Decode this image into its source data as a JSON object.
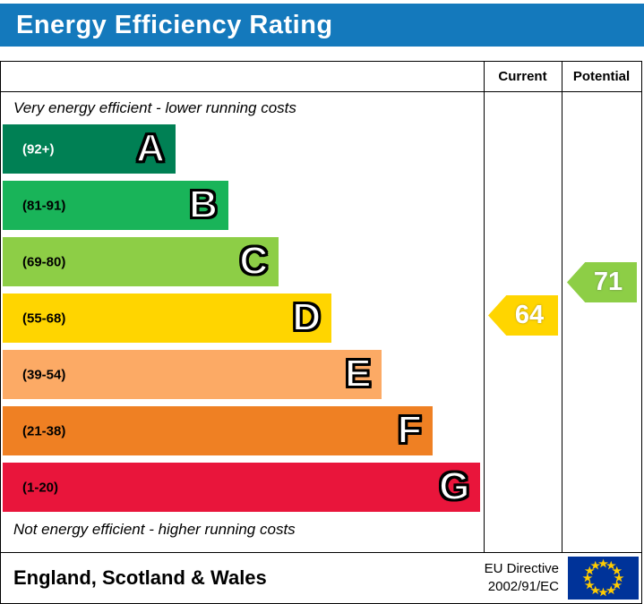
{
  "header": {
    "background_color": "#1479bc",
    "title_color": "#ffffff"
  },
  "chart_data": {
    "type": "bar",
    "title": "Energy Efficiency Rating",
    "columns": [
      "Current",
      "Potential"
    ],
    "top_caption": "Very energy efficient - lower running costs",
    "bottom_caption": "Not energy efficient - higher running costs",
    "bands": [
      {
        "letter": "A",
        "range": "(92+)",
        "color": "#008054",
        "range_color": "#ffffff",
        "width_pct": 36
      },
      {
        "letter": "B",
        "range": "(81-91)",
        "color": "#19b459",
        "range_color": "#000000",
        "width_pct": 47
      },
      {
        "letter": "C",
        "range": "(69-80)",
        "color": "#8dce46",
        "range_color": "#000000",
        "width_pct": 57.5
      },
      {
        "letter": "D",
        "range": "(55-68)",
        "color": "#ffd500",
        "range_color": "#000000",
        "width_pct": 68.5
      },
      {
        "letter": "E",
        "range": "(39-54)",
        "color": "#fcaa65",
        "range_color": "#000000",
        "width_pct": 79
      },
      {
        "letter": "F",
        "range": "(21-38)",
        "color": "#ef8023",
        "range_color": "#000000",
        "width_pct": 89.5
      },
      {
        "letter": "G",
        "range": "(1-20)",
        "color": "#e9153b",
        "range_color": "#000000",
        "width_pct": 99.5
      }
    ],
    "current": {
      "value": 64,
      "band": "D",
      "color": "#ffd500"
    },
    "potential": {
      "value": 71,
      "band": "C",
      "color": "#8dce46"
    }
  },
  "footer": {
    "region": "England, Scotland & Wales",
    "directive_line1": "EU Directive",
    "directive_line2": "2002/91/EC",
    "eu_flag": {
      "background": "#003399",
      "stars": "#ffcc00"
    }
  }
}
